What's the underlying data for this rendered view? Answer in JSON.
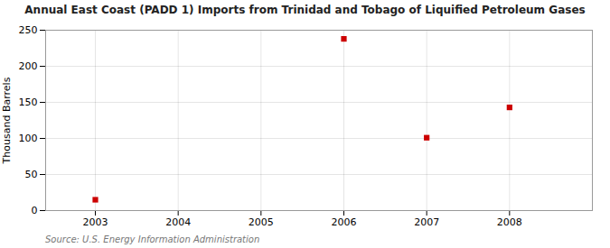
{
  "chart_data": {
    "type": "scatter",
    "title": "Annual East Coast (PADD 1) Imports from Trinidad and Tobago of Liquified Petroleum Gases",
    "ylabel": "Thousand Barrels",
    "source": "Source: U.S. Energy Information Administration",
    "x": [
      2003,
      2006,
      2007,
      2008
    ],
    "values": [
      15,
      238,
      101,
      143
    ],
    "color": "#cc0000",
    "marker": "square",
    "xlim": [
      2002.4,
      2009.0
    ],
    "xticks": [
      2003,
      2004,
      2005,
      2006,
      2007,
      2008
    ],
    "ylim": [
      0,
      250
    ],
    "yticks": [
      0,
      50,
      100,
      150,
      200,
      250
    ],
    "grid": true
  }
}
